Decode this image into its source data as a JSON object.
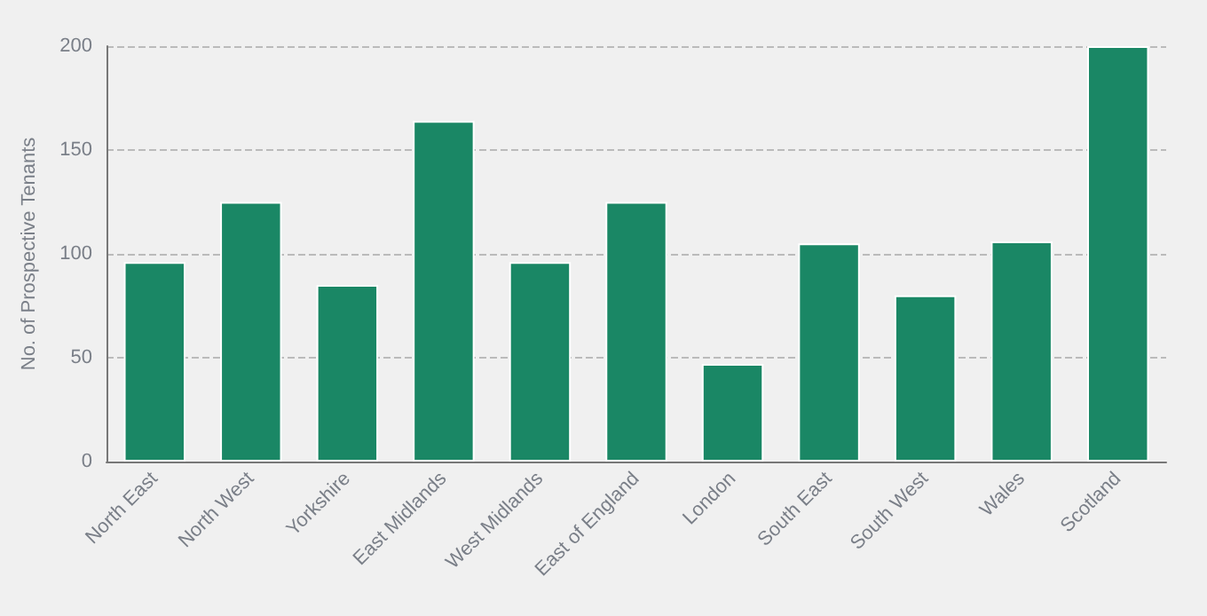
{
  "chart_data": {
    "type": "bar",
    "ylabel": "No. of Prospective Tenants",
    "categories": [
      "North East",
      "North West",
      "Yorkshire",
      "East Midlands",
      "West Midlands",
      "East of England",
      "London",
      "South East",
      "South West",
      "Wales",
      "Scotland"
    ],
    "values": [
      96,
      125,
      85,
      164,
      96,
      125,
      47,
      105,
      80,
      106,
      200
    ],
    "color": "#1a8765",
    "ylim": [
      0,
      200
    ],
    "yticks": [
      0,
      50,
      100,
      150,
      200
    ],
    "grid": "y"
  }
}
